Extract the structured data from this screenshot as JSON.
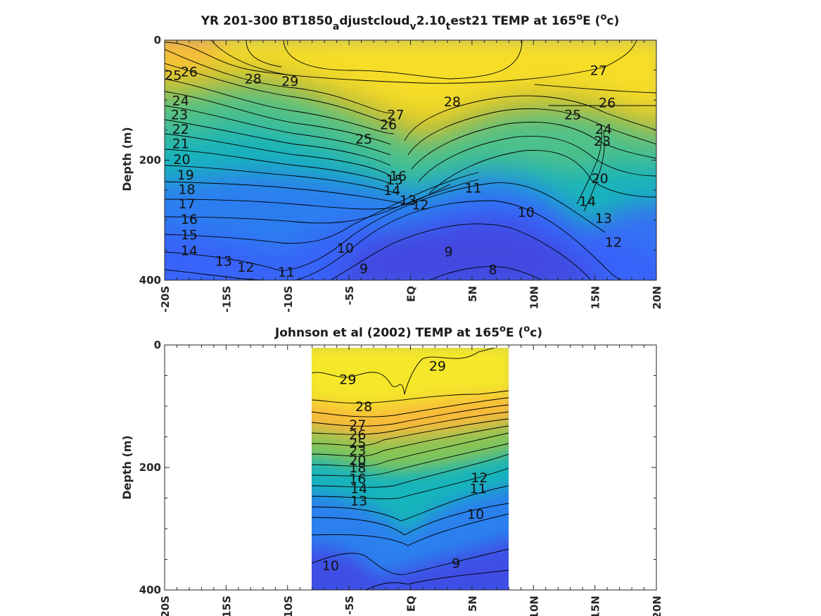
{
  "chart_data": [
    {
      "type": "heatmap",
      "title_parts": [
        "YR 201-300 BT1850",
        "a",
        "djustcloud",
        "v",
        "2.10",
        "t",
        "est21 TEMP at 165",
        "o",
        "E (",
        "o",
        "c)"
      ],
      "ylabel": "Depth (m)",
      "xticks": [
        "-20S",
        "-15S",
        "-10S",
        "-5S",
        "EQ",
        "5N",
        "10N",
        "15N",
        "20N"
      ],
      "yticks": [
        "0",
        "200",
        "400"
      ],
      "xlim": [
        -20,
        20
      ],
      "ylim": [
        0,
        400
      ],
      "y_reversed": true,
      "colormap": "parula",
      "clim": [
        6,
        30
      ],
      "domain": [
        -20,
        20
      ],
      "contour_labels": [
        {
          "text": "26",
          "lat": -18.0,
          "depth": 52
        },
        {
          "text": "25",
          "lat": -19.3,
          "depth": 58
        },
        {
          "text": "28",
          "lat": -12.8,
          "depth": 64
        },
        {
          "text": "29",
          "lat": -9.8,
          "depth": 68
        },
        {
          "text": "27",
          "lat": 15.3,
          "depth": 50
        },
        {
          "text": "28",
          "lat": 3.4,
          "depth": 102
        },
        {
          "text": "26",
          "lat": 16.0,
          "depth": 104
        },
        {
          "text": "25",
          "lat": 13.2,
          "depth": 124
        },
        {
          "text": "27",
          "lat": -1.2,
          "depth": 124
        },
        {
          "text": "26",
          "lat": -1.8,
          "depth": 140
        },
        {
          "text": "25",
          "lat": -3.8,
          "depth": 164
        },
        {
          "text": "24",
          "lat": -18.7,
          "depth": 100
        },
        {
          "text": "23",
          "lat": -18.8,
          "depth": 124
        },
        {
          "text": "22",
          "lat": -18.7,
          "depth": 148
        },
        {
          "text": "21",
          "lat": -18.7,
          "depth": 172
        },
        {
          "text": "20",
          "lat": -18.6,
          "depth": 198
        },
        {
          "text": "19",
          "lat": -18.3,
          "depth": 224
        },
        {
          "text": "18",
          "lat": -18.2,
          "depth": 248
        },
        {
          "text": "17",
          "lat": -18.2,
          "depth": 272
        },
        {
          "text": "16",
          "lat": -18.0,
          "depth": 298
        },
        {
          "text": "15",
          "lat": -18.0,
          "depth": 324
        },
        {
          "text": "14",
          "lat": -18.0,
          "depth": 350
        },
        {
          "text": "13",
          "lat": -15.2,
          "depth": 368
        },
        {
          "text": "12",
          "lat": -13.4,
          "depth": 378
        },
        {
          "text": "11",
          "lat": -10.1,
          "depth": 386
        },
        {
          "text": "10",
          "lat": -5.3,
          "depth": 346
        },
        {
          "text": "9",
          "lat": -3.8,
          "depth": 380
        },
        {
          "text": "9",
          "lat": 3.1,
          "depth": 352
        },
        {
          "text": "8",
          "lat": 6.7,
          "depth": 382
        },
        {
          "text": "10",
          "lat": 9.4,
          "depth": 286
        },
        {
          "text": "11",
          "lat": 5.1,
          "depth": 246
        },
        {
          "text": "13",
          "lat": -0.2,
          "depth": 266
        },
        {
          "text": "12",
          "lat": 0.8,
          "depth": 274
        },
        {
          "text": "14",
          "lat": -1.5,
          "depth": 250
        },
        {
          "text": "15",
          "lat": -1.3,
          "depth": 232
        },
        {
          "text": "16",
          "lat": -1.0,
          "depth": 226
        },
        {
          "text": "24",
          "lat": 15.7,
          "depth": 148
        },
        {
          "text": "23",
          "lat": 15.6,
          "depth": 168
        },
        {
          "text": "13",
          "lat": 15.7,
          "depth": 296
        },
        {
          "text": "12",
          "lat": 16.5,
          "depth": 336
        },
        {
          "text": "14",
          "lat": 14.4,
          "depth": 268
        },
        {
          "text": "20",
          "lat": 15.4,
          "depth": 230
        }
      ]
    },
    {
      "type": "heatmap",
      "title_parts": [
        "Johnson et al (2002) TEMP at 165",
        "o",
        "E (",
        "o",
        "c)"
      ],
      "ylabel": "Depth (m)",
      "xticks": [
        "-20S",
        "-15S",
        "-10S",
        "-5S",
        "EQ",
        "5N",
        "10N",
        "15N",
        "20N"
      ],
      "yticks": [
        "0",
        "200",
        "400"
      ],
      "xlim": [
        -20,
        20
      ],
      "ylim": [
        0,
        400
      ],
      "y_reversed": true,
      "colormap": "parula",
      "clim": [
        6,
        30
      ],
      "domain": [
        -8,
        8
      ],
      "contour_labels": [
        {
          "text": "29",
          "lat": -5.1,
          "depth": 56
        },
        {
          "text": "29",
          "lat": 2.2,
          "depth": 34
        },
        {
          "text": "28",
          "lat": -3.8,
          "depth": 100
        },
        {
          "text": "27",
          "lat": -4.3,
          "depth": 130
        },
        {
          "text": "26",
          "lat": -4.3,
          "depth": 146
        },
        {
          "text": "25",
          "lat": -4.3,
          "depth": 160
        },
        {
          "text": "23",
          "lat": -4.3,
          "depth": 172
        },
        {
          "text": "20",
          "lat": -4.3,
          "depth": 188
        },
        {
          "text": "18",
          "lat": -4.3,
          "depth": 200
        },
        {
          "text": "16",
          "lat": -4.3,
          "depth": 218
        },
        {
          "text": "14",
          "lat": -4.2,
          "depth": 234
        },
        {
          "text": "13",
          "lat": -4.2,
          "depth": 254
        },
        {
          "text": "12",
          "lat": 5.6,
          "depth": 216
        },
        {
          "text": "11",
          "lat": 5.5,
          "depth": 234
        },
        {
          "text": "10",
          "lat": 5.3,
          "depth": 276
        },
        {
          "text": "10",
          "lat": -6.5,
          "depth": 360
        },
        {
          "text": "9",
          "lat": 3.7,
          "depth": 356
        }
      ]
    }
  ],
  "colors": {
    "parula": [
      "#3e26a8",
      "#4743e3",
      "#3b61fd",
      "#2c7ff0",
      "#2096de",
      "#0aabc4",
      "#1bbab0",
      "#4ac28e",
      "#7ec55d",
      "#b3c032",
      "#dbb824",
      "#fbbd39",
      "#f5db2a",
      "#f9f815"
    ],
    "contour": "#000000",
    "axes": "#262626"
  }
}
